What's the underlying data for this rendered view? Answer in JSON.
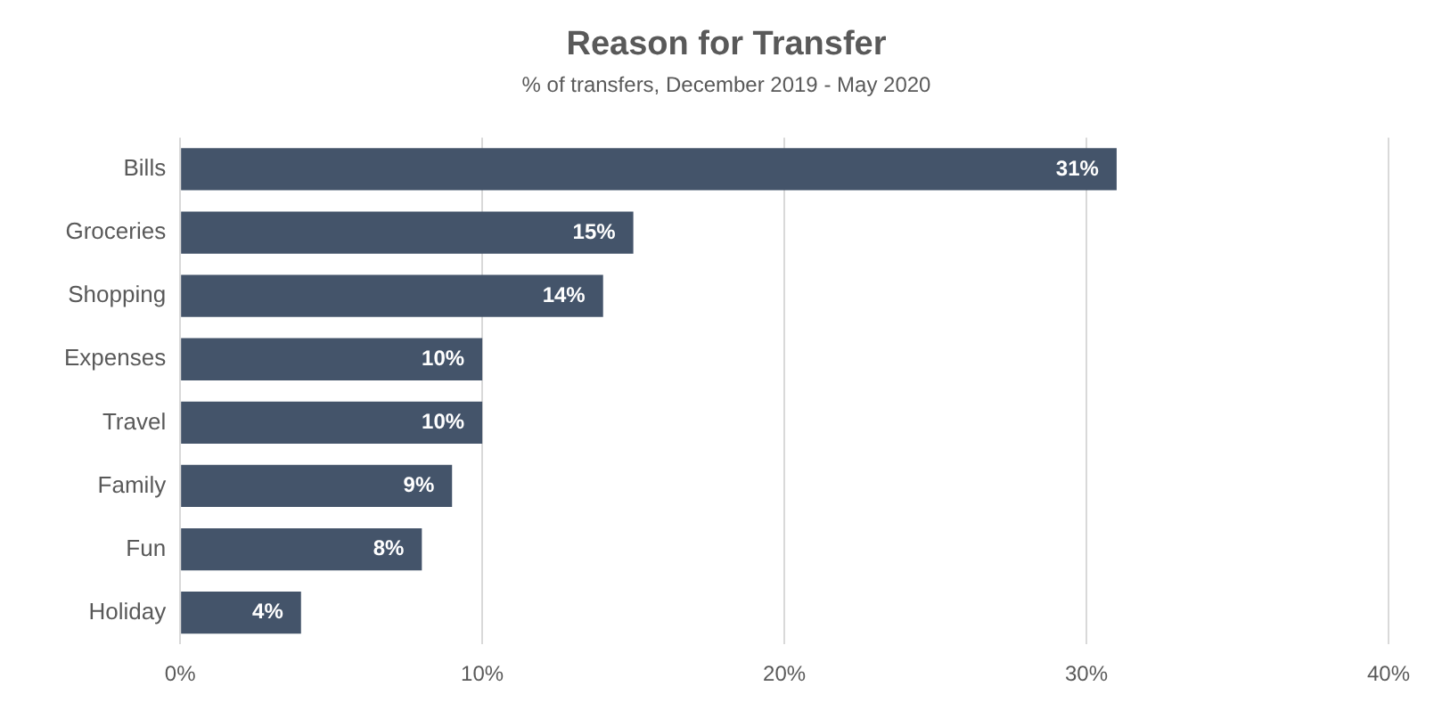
{
  "chart_data": {
    "type": "bar",
    "orientation": "horizontal",
    "title": "Reason for Transfer",
    "subtitle": "% of transfers, December 2019 - May 2020",
    "categories": [
      "Bills",
      "Groceries",
      "Shopping",
      "Expenses",
      "Travel",
      "Family",
      "Fun",
      "Holiday"
    ],
    "values": [
      31,
      15,
      14,
      10,
      10,
      9,
      8,
      4
    ],
    "value_labels": [
      "31%",
      "15%",
      "14%",
      "10%",
      "10%",
      "9%",
      "8%",
      "4%"
    ],
    "color": "#44546a",
    "xlim": [
      0,
      40
    ],
    "xticks": [
      {
        "value": 0,
        "label": "0%"
      },
      {
        "value": 10,
        "label": "10%"
      },
      {
        "value": 20,
        "label": "20%"
      },
      {
        "value": 30,
        "label": "30%"
      },
      {
        "value": 40,
        "label": "40%"
      }
    ],
    "grid": "x"
  }
}
